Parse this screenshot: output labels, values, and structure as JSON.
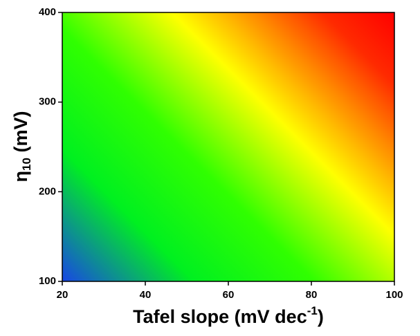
{
  "chart_data": {
    "type": "heatmap",
    "xlabel_parts": [
      "Tafel slope (mV dec",
      "-1",
      ")"
    ],
    "ylabel_parts": [
      "η",
      "10",
      " (mV)"
    ],
    "xlim": [
      20,
      100
    ],
    "xticks": [
      20,
      40,
      60,
      80,
      100
    ],
    "ylim": [
      100,
      400
    ],
    "yticks": [
      100,
      200,
      300,
      400
    ],
    "colormap": [
      {
        "offset": 0,
        "color": "#1846e6"
      },
      {
        "offset": 0.22,
        "color": "#00f020"
      },
      {
        "offset": 0.42,
        "color": "#30ff00"
      },
      {
        "offset": 0.63,
        "color": "#ffff00"
      },
      {
        "offset": 0.88,
        "color": "#ff2a00"
      },
      {
        "offset": 1,
        "color": "#ff0000"
      }
    ]
  }
}
